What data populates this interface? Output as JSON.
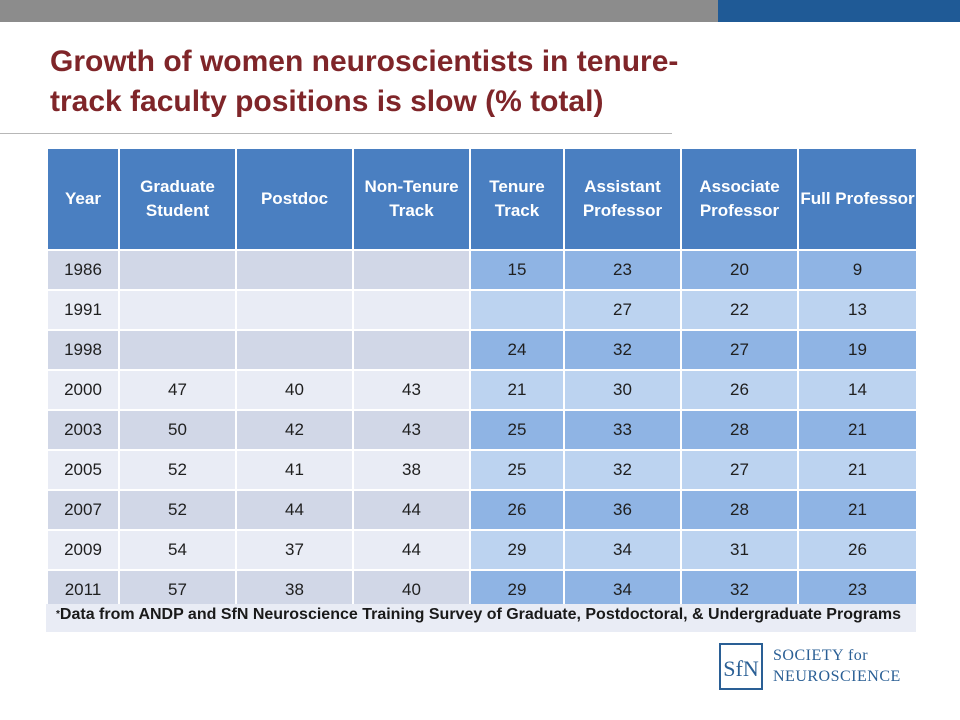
{
  "title": "Growth of women neuroscientists in tenure-track faculty positions is slow (% total)",
  "table": {
    "headers": [
      "Year",
      "Graduate Student",
      "Postdoc",
      "Non-Tenure Track",
      "Tenure Track",
      "Assistant Professor",
      "Associate Professor",
      "Full Professor"
    ],
    "rows": [
      [
        "1986",
        "",
        "",
        "",
        "15",
        "23",
        "20",
        "9"
      ],
      [
        "1991",
        "",
        "",
        "",
        "",
        "27",
        "22",
        "13"
      ],
      [
        "1998",
        "",
        "",
        "",
        "24",
        "32",
        "27",
        "19"
      ],
      [
        "2000",
        "47",
        "40",
        "43",
        "21",
        "30",
        "26",
        "14"
      ],
      [
        "2003",
        "50",
        "42",
        "43",
        "25",
        "33",
        "28",
        "21"
      ],
      [
        "2005",
        "52",
        "41",
        "38",
        "25",
        "32",
        "27",
        "21"
      ],
      [
        "2007",
        "52",
        "44",
        "44",
        "26",
        "36",
        "28",
        "21"
      ],
      [
        "2009",
        "54",
        "37",
        "44",
        "29",
        "34",
        "31",
        "26"
      ],
      [
        "2011",
        "57",
        "38",
        "40",
        "29",
        "34",
        "32",
        "23"
      ]
    ],
    "highlighted_columns": [
      4,
      7
    ]
  },
  "footnote": {
    "marker": "*",
    "text": "Data from ANDP and SfN Neuroscience Training Survey of Graduate, Postdoctoral, & Undergraduate Programs"
  },
  "logo": {
    "mark": "SfN",
    "line1": "SOCIETY for",
    "line2": "NEUROSCIENCE"
  },
  "colors": {
    "title": "#7f2529",
    "header_bg": "#4a7fc1",
    "row_odd": "#d1d7e7",
    "row_even": "#e9ecf5",
    "highlight_odd": "#8fb4e4",
    "highlight_even": "#bcd3f0",
    "topbar_gray": "#8c8c8c",
    "topbar_blue": "#1f5a96",
    "logo": "#2a5f95"
  }
}
